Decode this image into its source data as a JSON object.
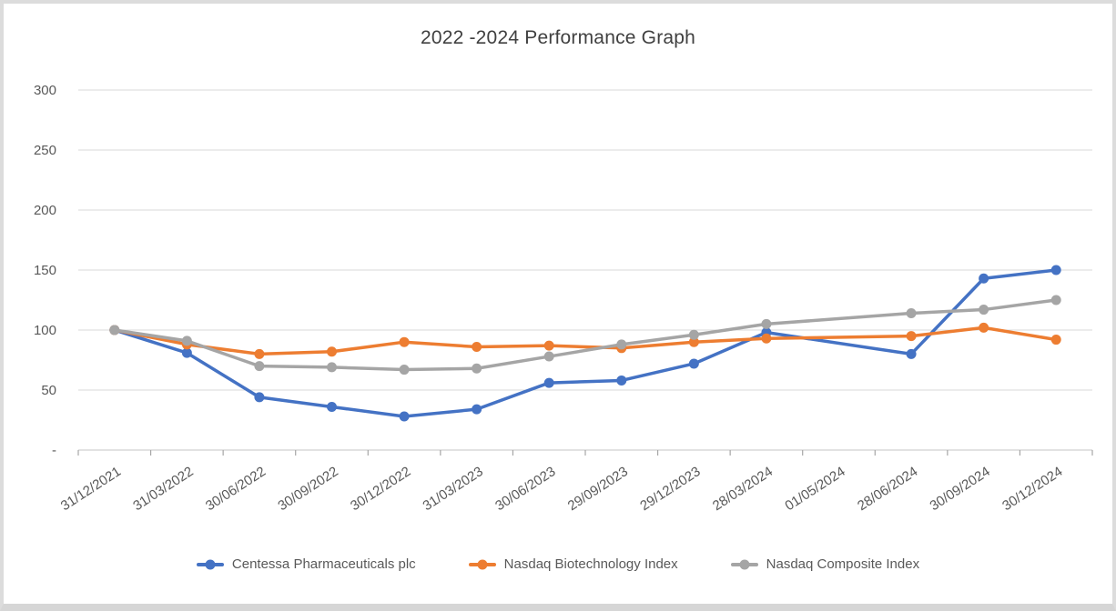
{
  "title": "2022 -2024 Performance Graph",
  "chart_data": {
    "type": "line",
    "title": "2022 -2024 Performance Graph",
    "categories": [
      "31/12/2021",
      "31/03/2022",
      "30/06/2022",
      "30/09/2022",
      "30/12/2022",
      "31/03/2023",
      "30/06/2023",
      "29/09/2023",
      "29/12/2023",
      "28/03/2024",
      "01/05/2024",
      "28/06/2024",
      "30/09/2024",
      "30/12/2024"
    ],
    "series": [
      {
        "name": "Centessa Pharmaceuticals plc",
        "color": "#4472C4",
        "values": [
          100,
          81,
          44,
          36,
          28,
          34,
          56,
          58,
          72,
          98,
          null,
          80,
          143,
          150
        ]
      },
      {
        "name": "Nasdaq Biotechnology Index",
        "color": "#ED7D31",
        "values": [
          100,
          88,
          80,
          82,
          90,
          86,
          87,
          85,
          90,
          93,
          null,
          95,
          102,
          92
        ]
      },
      {
        "name": "Nasdaq Composite Index",
        "color": "#A5A5A5",
        "values": [
          100,
          91,
          70,
          69,
          67,
          68,
          78,
          88,
          96,
          105,
          null,
          114,
          117,
          125
        ]
      }
    ],
    "y_ticks": [
      0,
      50,
      100,
      150,
      200,
      250,
      300
    ],
    "y_tick_labels": [
      "-",
      "50",
      "100",
      "150",
      "200",
      "250",
      "300"
    ],
    "ylim": [
      0,
      300
    ],
    "grid": true,
    "legend_position": "bottom",
    "marker": "circle"
  },
  "colors": {
    "grid": "#D9D9D9",
    "axis_line": "#D9D9D9",
    "tick": "#A6A6A6",
    "axis_text": "#595959",
    "title_text": "#404040"
  }
}
